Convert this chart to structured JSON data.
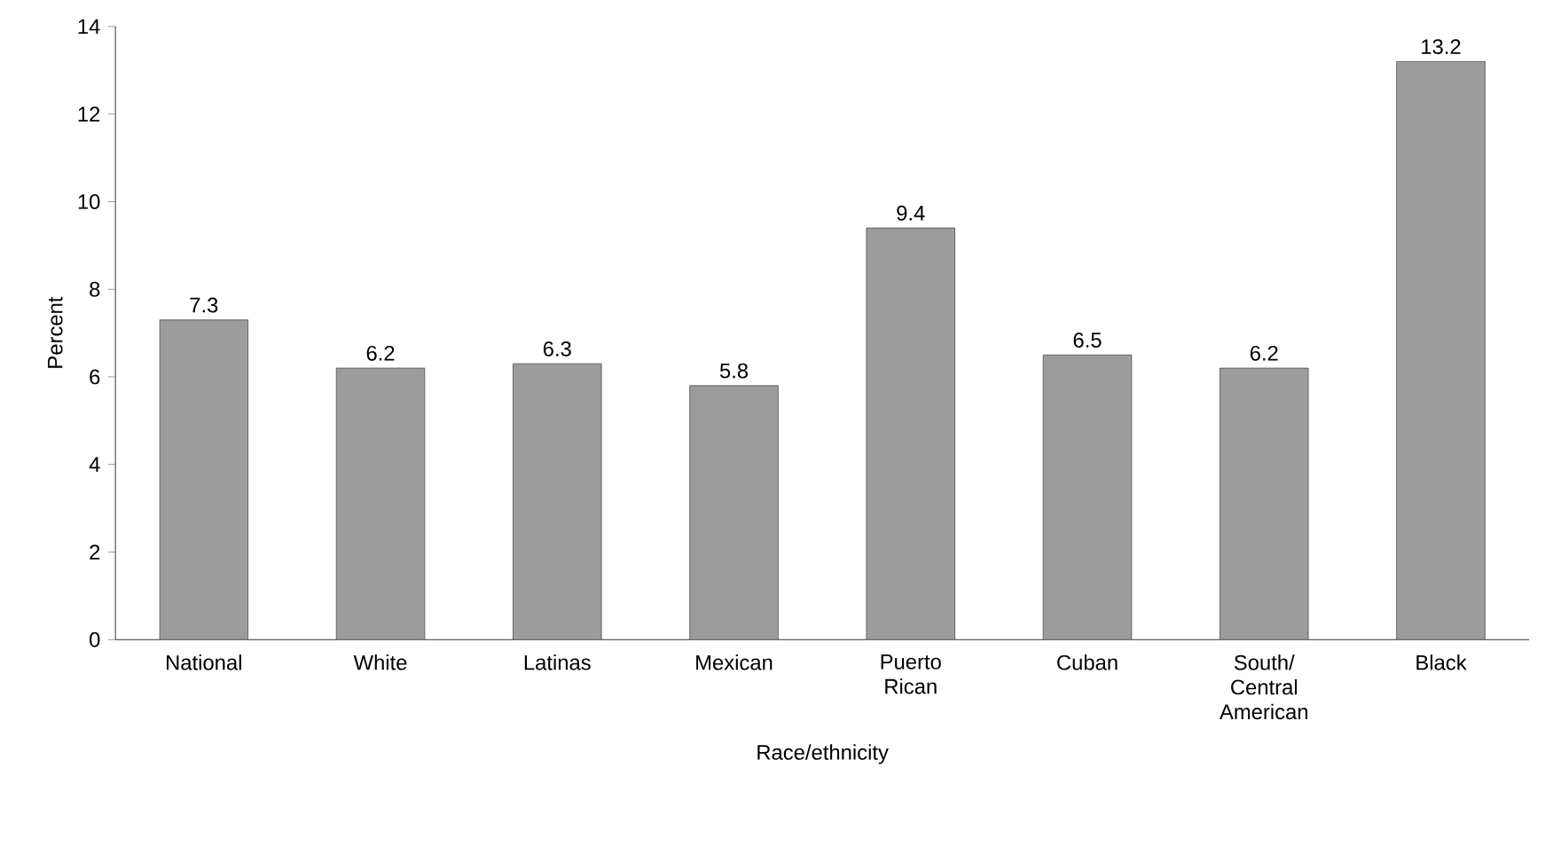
{
  "chart_data": {
    "type": "bar",
    "xlabel": "Race/ethnicity",
    "ylabel": "Percent",
    "categories": [
      "National",
      "White",
      "Latinas",
      "Mexican",
      "Puerto Rican",
      "Cuban",
      "South/ Central American",
      "Black"
    ],
    "values": [
      7.3,
      6.2,
      6.3,
      5.8,
      9.4,
      6.5,
      6.2,
      13.2
    ],
    "color": "#9c9c9c",
    "ylim": [
      0,
      14
    ],
    "yticks": [
      0,
      2,
      4,
      6,
      8,
      10,
      12,
      14
    ],
    "data_labels": true
  }
}
